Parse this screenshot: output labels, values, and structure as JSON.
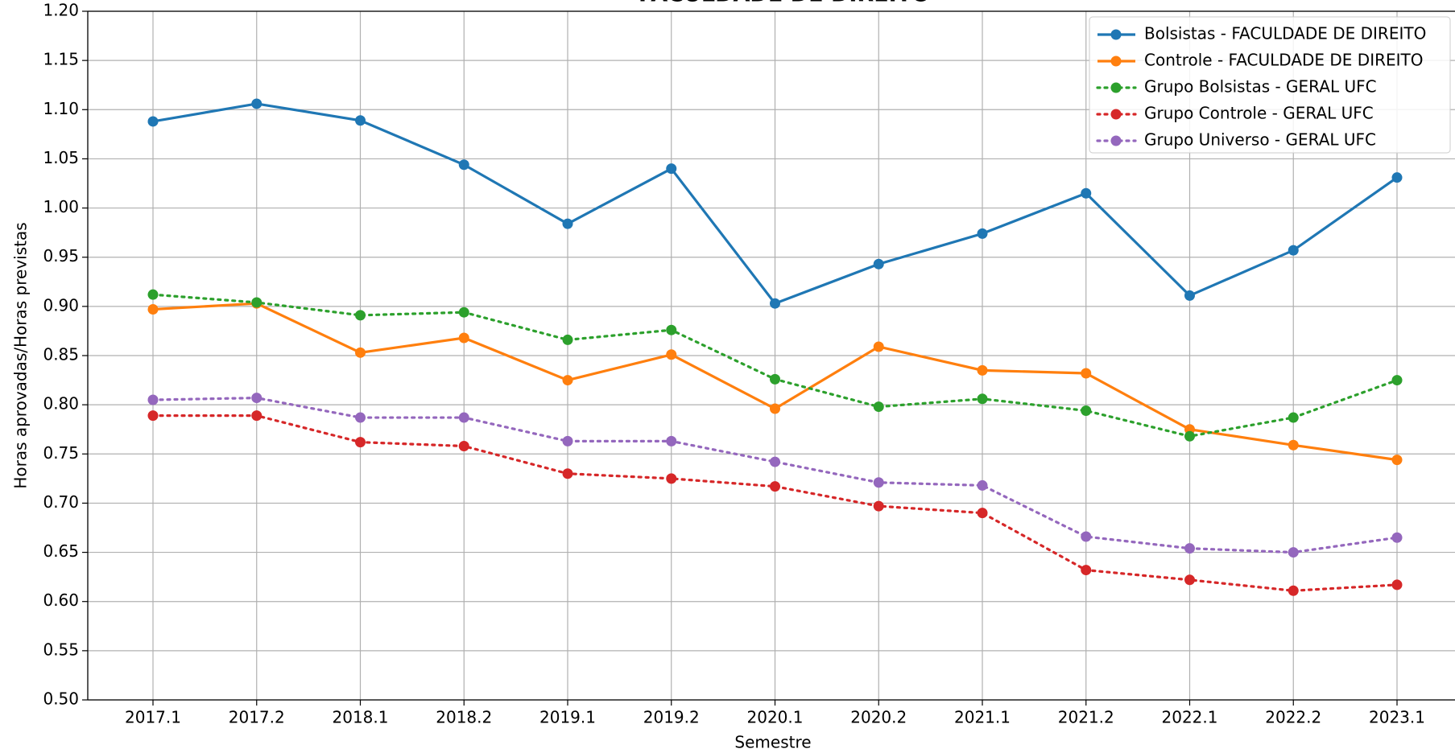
{
  "chart_data": {
    "type": "line",
    "title": "FACULDADE DE DIREITO",
    "x_label": "Semestre",
    "y_label": "Horas aprovadas/Horas previstas",
    "categories": [
      "2017.1",
      "2017.2",
      "2018.1",
      "2018.2",
      "2019.1",
      "2019.2",
      "2020.1",
      "2020.2",
      "2021.1",
      "2021.2",
      "2022.1",
      "2022.2",
      "2023.1"
    ],
    "ylim": [
      0.5,
      1.2
    ],
    "yticks": [
      {
        "value": 0.5,
        "label": "0.50"
      },
      {
        "value": 0.55,
        "label": "0.55"
      },
      {
        "value": 0.6,
        "label": "0.60"
      },
      {
        "value": 0.65,
        "label": "0.65"
      },
      {
        "value": 0.7,
        "label": "0.70"
      },
      {
        "value": 0.75,
        "label": "0.75"
      },
      {
        "value": 0.8,
        "label": "0.80"
      },
      {
        "value": 0.85,
        "label": "0.85"
      },
      {
        "value": 0.9,
        "label": "0.90"
      },
      {
        "value": 0.95,
        "label": "0.95"
      },
      {
        "value": 1.0,
        "label": "1.00"
      },
      {
        "value": 1.05,
        "label": "1.05"
      },
      {
        "value": 1.1,
        "label": "1.10"
      },
      {
        "value": 1.15,
        "label": "1.15"
      },
      {
        "value": 1.2,
        "label": "1.20"
      }
    ],
    "grid": true,
    "legend": "upper right",
    "series": [
      {
        "name": "Bolsistas - FACULDADE DE DIREITO",
        "color": "#1f77b4",
        "linestyle": "solid",
        "values": [
          1.088,
          1.106,
          1.089,
          1.044,
          0.984,
          1.04,
          0.903,
          0.943,
          0.974,
          1.015,
          0.911,
          0.957,
          1.031
        ]
      },
      {
        "name": "Controle - FACULDADE DE DIREITO",
        "color": "#ff7f0e",
        "linestyle": "solid",
        "values": [
          0.897,
          0.903,
          0.853,
          0.868,
          0.825,
          0.851,
          0.796,
          0.859,
          0.835,
          0.832,
          0.775,
          0.759,
          0.744
        ]
      },
      {
        "name": "Grupo Bolsistas - GERAL UFC",
        "color": "#2ca02c",
        "linestyle": "dotted",
        "values": [
          0.912,
          0.904,
          0.891,
          0.894,
          0.866,
          0.876,
          0.826,
          0.798,
          0.806,
          0.794,
          0.768,
          0.787,
          0.825
        ]
      },
      {
        "name": "Grupo Controle - GERAL UFC",
        "color": "#d62728",
        "linestyle": "dotted",
        "values": [
          0.789,
          0.789,
          0.762,
          0.758,
          0.73,
          0.725,
          0.717,
          0.697,
          0.69,
          0.632,
          0.622,
          0.611,
          0.617
        ]
      },
      {
        "name": "Grupo Universo - GERAL UFC",
        "color": "#9467bd",
        "linestyle": "dotted",
        "values": [
          0.805,
          0.807,
          0.787,
          0.787,
          0.763,
          0.763,
          0.742,
          0.721,
          0.718,
          0.666,
          0.654,
          0.65,
          0.665
        ]
      }
    ]
  }
}
